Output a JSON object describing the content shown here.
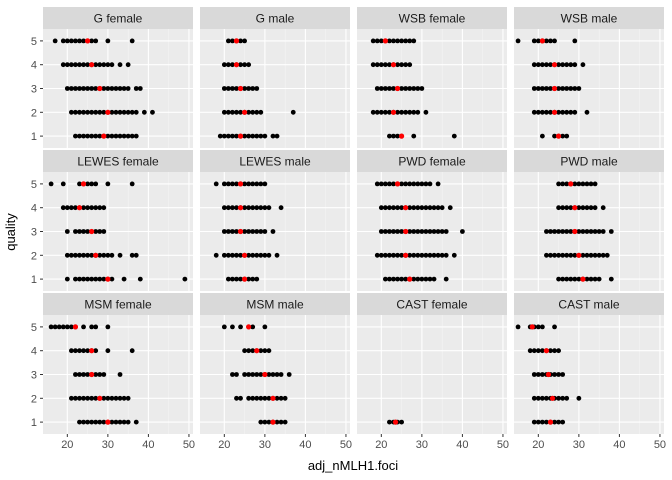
{
  "chart_data": {
    "type": "scatter",
    "title": "",
    "xlabel": "adj_nMLH1.foci",
    "ylabel": "quality",
    "xlim": [
      14,
      51
    ],
    "ylim": [
      0.5,
      5.5
    ],
    "x_ticks": [
      20,
      30,
      40,
      50
    ],
    "y_ticks": [
      1,
      2,
      3,
      4,
      5
    ],
    "grid": true,
    "legend": "none",
    "colors": {
      "panel_bg": "#EBEBEB",
      "strip_bg": "#D9D9D9",
      "grid_major": "#FFFFFF",
      "point": "#000000",
      "mean_point": "#FF0000"
    },
    "panels": [
      {
        "label": "G female",
        "rows": [
          {
            "q": 5,
            "x": [
              17,
              19,
              20,
              21,
              22,
              23,
              24,
              25,
              26,
              27,
              30,
              36
            ],
            "mean": 25
          },
          {
            "q": 4,
            "x": [
              19,
              20,
              21,
              22,
              23,
              24,
              25,
              26,
              27,
              28,
              29,
              30,
              31,
              33,
              35
            ],
            "mean": 26
          },
          {
            "q": 3,
            "x": [
              20,
              21,
              22,
              23,
              24,
              25,
              26,
              27,
              28,
              29,
              30,
              31,
              32,
              33,
              34,
              35,
              37,
              38
            ],
            "mean": 28
          },
          {
            "q": 2,
            "x": [
              21,
              22,
              23,
              24,
              25,
              26,
              27,
              28,
              29,
              30,
              31,
              32,
              33,
              34,
              35,
              36,
              37,
              39,
              41
            ],
            "mean": 30
          },
          {
            "q": 1,
            "x": [
              22,
              23,
              24,
              25,
              26,
              27,
              28,
              29,
              30,
              31,
              32,
              33,
              34,
              35,
              36,
              37
            ],
            "mean": 29
          }
        ]
      },
      {
        "label": "G male",
        "rows": [
          {
            "q": 5,
            "x": [
              21,
              22,
              23,
              24,
              25
            ],
            "mean": 23
          },
          {
            "q": 4,
            "x": [
              20,
              21,
              22,
              23,
              24,
              25,
              26
            ],
            "mean": 23
          },
          {
            "q": 3,
            "x": [
              20,
              21,
              22,
              23,
              24,
              25,
              26,
              27,
              28
            ],
            "mean": 24
          },
          {
            "q": 2,
            "x": [
              20,
              21,
              22,
              23,
              24,
              25,
              26,
              27,
              28,
              29,
              37
            ],
            "mean": 25
          },
          {
            "q": 1,
            "x": [
              19,
              20,
              21,
              22,
              23,
              24,
              25,
              26,
              27,
              28,
              29,
              30,
              32,
              33
            ],
            "mean": 24
          }
        ]
      },
      {
        "label": "WSB female",
        "rows": [
          {
            "q": 5,
            "x": [
              18,
              19,
              20,
              21,
              22,
              23,
              24,
              25,
              26,
              27,
              28
            ],
            "mean": 21
          },
          {
            "q": 4,
            "x": [
              18,
              19,
              20,
              21,
              22,
              23,
              24,
              25,
              26,
              27
            ],
            "mean": 23
          },
          {
            "q": 3,
            "x": [
              19,
              20,
              21,
              22,
              23,
              24,
              25,
              26,
              27,
              28,
              29,
              30
            ],
            "mean": 24
          },
          {
            "q": 2,
            "x": [
              18,
              19,
              20,
              21,
              22,
              23,
              24,
              25,
              26,
              27,
              28,
              29,
              31
            ],
            "mean": 23
          },
          {
            "q": 1,
            "x": [
              22,
              23,
              24,
              25,
              28,
              38
            ],
            "mean": 25
          }
        ]
      },
      {
        "label": "WSB male",
        "rows": [
          {
            "q": 5,
            "x": [
              15,
              19,
              20,
              21,
              22,
              23,
              24,
              29
            ],
            "mean": 21
          },
          {
            "q": 4,
            "x": [
              19,
              20,
              21,
              22,
              23,
              24,
              25,
              26,
              27,
              28,
              29,
              31
            ],
            "mean": 24
          },
          {
            "q": 3,
            "x": [
              19,
              20,
              21,
              22,
              23,
              24,
              25,
              26,
              27,
              28,
              29,
              30
            ],
            "mean": 24
          },
          {
            "q": 2,
            "x": [
              19,
              20,
              21,
              22,
              23,
              24,
              25,
              26,
              27,
              28,
              29,
              32
            ],
            "mean": 24
          },
          {
            "q": 1,
            "x": [
              21,
              24,
              25,
              26,
              27
            ],
            "mean": 25
          }
        ]
      },
      {
        "label": "LEWES female",
        "rows": [
          {
            "q": 5,
            "x": [
              16,
              19,
              23,
              24,
              25,
              26,
              27,
              30,
              36
            ],
            "mean": 24
          },
          {
            "q": 4,
            "x": [
              19,
              20,
              21,
              22,
              23,
              24,
              25,
              26,
              27,
              28,
              29
            ],
            "mean": 23
          },
          {
            "q": 3,
            "x": [
              20,
              22,
              23,
              24,
              25,
              27,
              28,
              29
            ],
            "mean": 26
          },
          {
            "q": 2,
            "x": [
              20,
              21,
              22,
              23,
              24,
              25,
              26,
              27,
              28,
              29,
              30,
              31,
              33,
              36,
              37
            ],
            "mean": 27
          },
          {
            "q": 1,
            "x": [
              20,
              22,
              23,
              24,
              25,
              26,
              27,
              28,
              29,
              30,
              31,
              34,
              38,
              49
            ],
            "mean": 30
          }
        ]
      },
      {
        "label": "LEWES male",
        "rows": [
          {
            "q": 5,
            "x": [
              18,
              20,
              21,
              22,
              23,
              24,
              25,
              26,
              27,
              28,
              29,
              30
            ],
            "mean": 24
          },
          {
            "q": 4,
            "x": [
              20,
              21,
              22,
              23,
              24,
              25,
              26,
              27,
              28,
              29,
              30,
              31,
              34
            ],
            "mean": 24
          },
          {
            "q": 3,
            "x": [
              20,
              21,
              22,
              23,
              24,
              25,
              26,
              27,
              28,
              29,
              30,
              32
            ],
            "mean": 24
          },
          {
            "q": 2,
            "x": [
              18,
              20,
              21,
              22,
              23,
              24,
              25,
              26,
              27,
              28,
              29,
              30,
              31,
              33
            ],
            "mean": 25
          },
          {
            "q": 1,
            "x": [
              21,
              22,
              23,
              24,
              25,
              26,
              27,
              28
            ],
            "mean": 25
          }
        ]
      },
      {
        "label": "PWD female",
        "rows": [
          {
            "q": 5,
            "x": [
              19,
              20,
              21,
              22,
              23,
              24,
              25,
              26,
              27,
              28,
              29,
              30,
              31,
              32,
              34
            ],
            "mean": 24
          },
          {
            "q": 4,
            "x": [
              20,
              21,
              22,
              23,
              24,
              25,
              26,
              27,
              28,
              29,
              30,
              31,
              32,
              33,
              34,
              35,
              37
            ],
            "mean": 26
          },
          {
            "q": 3,
            "x": [
              20,
              21,
              22,
              23,
              24,
              25,
              26,
              27,
              28,
              29,
              30,
              31,
              32,
              33,
              34,
              35,
              36,
              40
            ],
            "mean": 26
          },
          {
            "q": 2,
            "x": [
              19,
              20,
              21,
              22,
              23,
              24,
              25,
              26,
              27,
              28,
              29,
              30,
              31,
              32,
              33,
              34,
              35,
              36,
              38
            ],
            "mean": 26
          },
          {
            "q": 1,
            "x": [
              21,
              22,
              23,
              24,
              25,
              26,
              27,
              28,
              29,
              30,
              31,
              32,
              33,
              36
            ],
            "mean": 27
          }
        ]
      },
      {
        "label": "PWD male",
        "rows": [
          {
            "q": 5,
            "x": [
              25,
              26,
              27,
              28,
              29,
              30,
              31,
              32,
              33,
              34
            ],
            "mean": 28
          },
          {
            "q": 4,
            "x": [
              25,
              26,
              27,
              28,
              29,
              30,
              31,
              32,
              33,
              34,
              36
            ],
            "mean": 29
          },
          {
            "q": 3,
            "x": [
              22,
              23,
              24,
              25,
              26,
              27,
              28,
              29,
              30,
              31,
              32,
              33,
              34,
              35,
              36,
              38
            ],
            "mean": 29
          },
          {
            "q": 2,
            "x": [
              22,
              23,
              24,
              25,
              26,
              27,
              28,
              29,
              30,
              31,
              32,
              33,
              34,
              35,
              36,
              37
            ],
            "mean": 30
          },
          {
            "q": 1,
            "x": [
              25,
              26,
              27,
              28,
              29,
              30,
              31,
              32,
              33,
              34,
              35,
              38
            ],
            "mean": 31
          }
        ]
      },
      {
        "label": "MSM female",
        "rows": [
          {
            "q": 5,
            "x": [
              16,
              17,
              18,
              19,
              20,
              21,
              22,
              24,
              26,
              27,
              30
            ],
            "mean": 22
          },
          {
            "q": 4,
            "x": [
              21,
              22,
              23,
              24,
              25,
              26,
              27,
              30,
              36
            ],
            "mean": 26
          },
          {
            "q": 3,
            "x": [
              22,
              23,
              24,
              25,
              26,
              27,
              28,
              29,
              33
            ],
            "mean": 26
          },
          {
            "q": 2,
            "x": [
              21,
              22,
              23,
              24,
              25,
              26,
              27,
              28,
              29,
              30,
              31,
              32,
              33,
              34,
              35
            ],
            "mean": 28
          },
          {
            "q": 1,
            "x": [
              23,
              24,
              25,
              26,
              27,
              28,
              29,
              30,
              31,
              32,
              33,
              34,
              35,
              37
            ],
            "mean": 30
          }
        ]
      },
      {
        "label": "MSM male",
        "rows": [
          {
            "q": 5,
            "x": [
              20,
              22,
              24,
              26,
              27,
              30
            ],
            "mean": 26
          },
          {
            "q": 4,
            "x": [
              25,
              26,
              27,
              28,
              29,
              30,
              31
            ],
            "mean": 28
          },
          {
            "q": 3,
            "x": [
              22,
              23,
              25,
              26,
              27,
              28,
              29,
              30,
              31,
              32,
              33,
              34,
              36
            ],
            "mean": 30
          },
          {
            "q": 2,
            "x": [
              23,
              24,
              26,
              27,
              28,
              29,
              30,
              31,
              32,
              33,
              34,
              35
            ],
            "mean": 32
          },
          {
            "q": 1,
            "x": [
              29,
              30,
              31,
              32,
              33,
              34,
              35
            ],
            "mean": 32
          }
        ]
      },
      {
        "label": "CAST female",
        "rows": [
          {
            "q": 1,
            "x": [
              22,
              23,
              24,
              25
            ],
            "mean": 23.5
          }
        ]
      },
      {
        "label": "CAST male",
        "rows": [
          {
            "q": 5,
            "x": [
              15,
              18,
              19,
              20,
              21,
              24
            ],
            "mean": 18.5
          },
          {
            "q": 4,
            "x": [
              18,
              19,
              20,
              21,
              22,
              23,
              24,
              25
            ],
            "mean": 22
          },
          {
            "q": 3,
            "x": [
              19,
              20,
              21,
              22,
              23,
              24,
              25,
              26
            ],
            "mean": 22.5
          },
          {
            "q": 2,
            "x": [
              19,
              20,
              21,
              22,
              23,
              24,
              25,
              26,
              27,
              30
            ],
            "mean": 23.5
          },
          {
            "q": 1,
            "x": [
              19,
              20,
              21,
              22,
              23,
              24,
              25,
              26
            ],
            "mean": 23
          }
        ]
      }
    ]
  }
}
